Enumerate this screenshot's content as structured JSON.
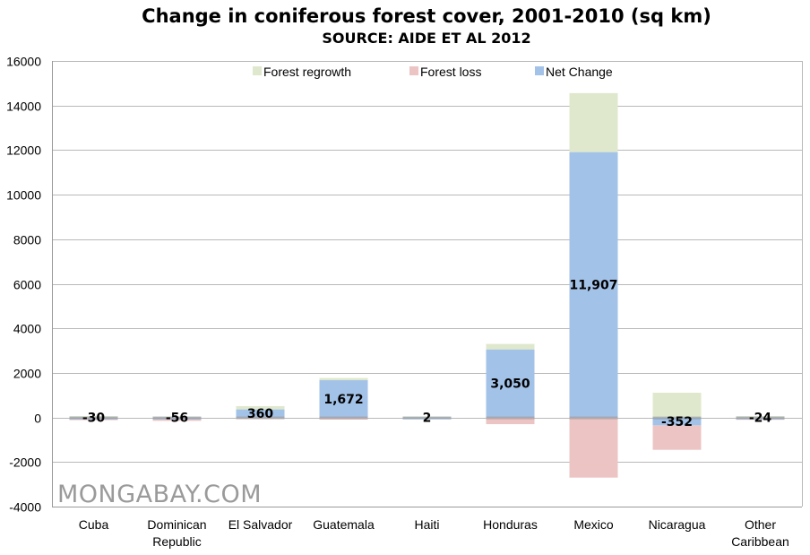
{
  "chart_data": {
    "type": "bar",
    "stacked": true,
    "title": "Change in coniferous forest cover, 2001-2010 (sq km)",
    "subtitle": "SOURCE: AIDE ET AL 2012",
    "categories": [
      [
        "Cuba"
      ],
      [
        "Dominican",
        "Republic"
      ],
      [
        "El Salvador"
      ],
      [
        "Guatemala"
      ],
      [
        "Haiti"
      ],
      [
        "Honduras"
      ],
      [
        "Mexico"
      ],
      [
        "Nicaragua"
      ],
      [
        "Other",
        "Caribbean"
      ]
    ],
    "series": [
      {
        "name": "Forest regrowth",
        "color": "#dfe8cc",
        "values": [
          60,
          40,
          150,
          100,
          40,
          250,
          2650,
          1110,
          60
        ]
      },
      {
        "name": "Forest loss",
        "color": "#ecc4c4",
        "values": [
          -90,
          -96,
          -40,
          -90,
          -38,
          -300,
          -2700,
          -1100,
          -80
        ]
      },
      {
        "name": "Net Change",
        "color": "#a3c2e8",
        "values": [
          -30,
          -56,
          360,
          1672,
          2,
          3050,
          11907,
          -352,
          -24
        ]
      }
    ],
    "net_labels": [
      "-30",
      "-56",
      "360",
      "1,672",
      "2",
      "3,050",
      "11,907",
      "-352",
      "-24"
    ],
    "ylim": [
      -4000,
      16000
    ],
    "yticks": [
      "-4000",
      "-2000",
      "0",
      "2000",
      "4000",
      "6000",
      "8000",
      "10000",
      "12000",
      "14000",
      "16000"
    ],
    "grid": true,
    "legend_position": "top"
  },
  "watermark": "MONGABAY.COM"
}
